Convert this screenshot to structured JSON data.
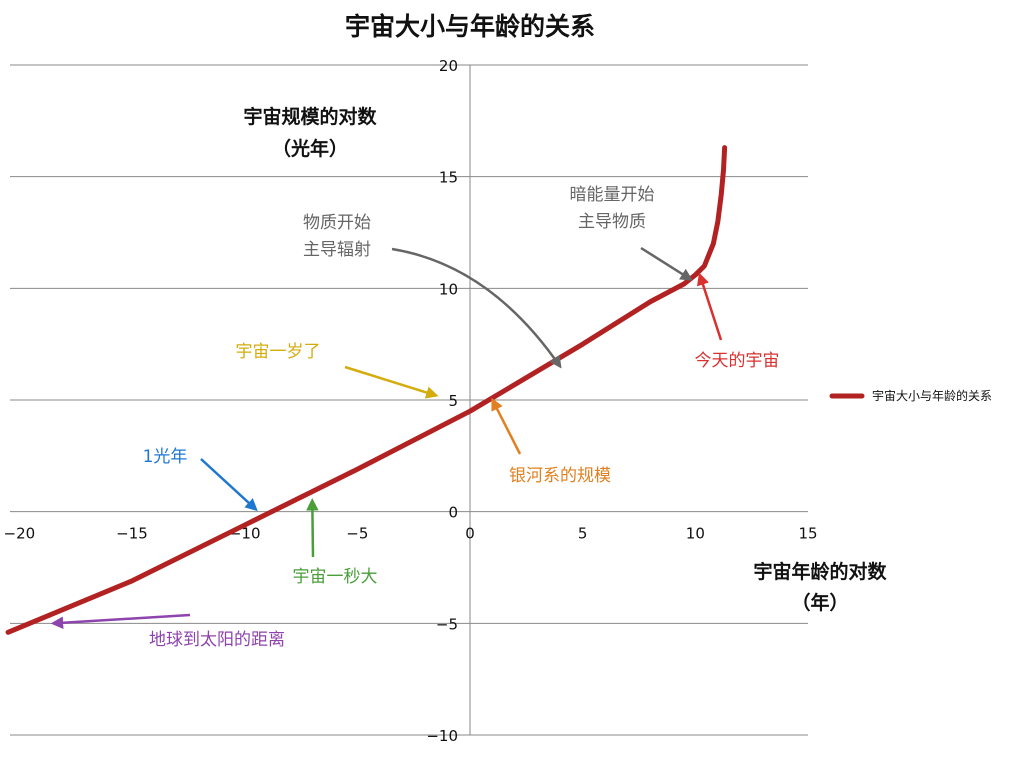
{
  "chart_data": {
    "type": "line",
    "title": "宇宙大小与年龄的关系",
    "xlabel": [
      "宇宙年龄的对数",
      "（年）"
    ],
    "ylabel": [
      "宇宙规模的对数",
      "（光年）"
    ],
    "xlim": [
      -20.5,
      15
    ],
    "ylim": [
      -10,
      20
    ],
    "xticks": [
      "−20",
      "−15",
      "−10",
      "−5",
      "0",
      "5",
      "10",
      "15"
    ],
    "yticks": [
      "−10",
      "−5",
      "0",
      "5",
      "10",
      "15",
      "20"
    ],
    "grid": "horizontal",
    "legend_position": "right",
    "series": [
      {
        "name": "宇宙大小与年龄的关系",
        "color": "#B22222",
        "x": [
          -20.5,
          -15,
          -10,
          -5,
          0,
          5,
          8,
          9.5,
          10,
          10.4,
          10.8,
          11.0,
          11.15,
          11.25,
          11.3
        ],
        "y": [
          -5.4,
          -3.1,
          -0.6,
          1.9,
          4.5,
          7.5,
          9.4,
          10.2,
          10.6,
          11.0,
          12.0,
          13.0,
          14.2,
          15.3,
          16.3
        ]
      }
    ],
    "annotations": [
      {
        "text": [
          "宇宙一岁了"
        ],
        "color": "#D4AC0D",
        "target": [
          -1.5,
          5.2
        ]
      },
      {
        "text": [
          "1光年"
        ],
        "color": "#1F77D0",
        "target": [
          -9.5,
          0.1
        ]
      },
      {
        "text": [
          "宇宙一秒大"
        ],
        "color": "#4A9E3A",
        "target": [
          -7.0,
          0.5
        ]
      },
      {
        "text": [
          "地球到太阳的距离"
        ],
        "color": "#8E44AD",
        "target": [
          -18.5,
          -5.0
        ]
      },
      {
        "text": [
          "银河系的规模"
        ],
        "color": "#E08020",
        "target": [
          1.0,
          5.0
        ]
      },
      {
        "text": [
          "物质开始",
          "主导辐射"
        ],
        "color": "#666666",
        "target": [
          4.0,
          6.5
        ]
      },
      {
        "text": [
          "暗能量开始",
          "主导物质"
        ],
        "color": "#666666",
        "target": [
          9.8,
          10.4
        ]
      },
      {
        "text": [
          "今天的宇宙"
        ],
        "color": "#D93030",
        "target": [
          10.2,
          10.6
        ]
      }
    ]
  }
}
